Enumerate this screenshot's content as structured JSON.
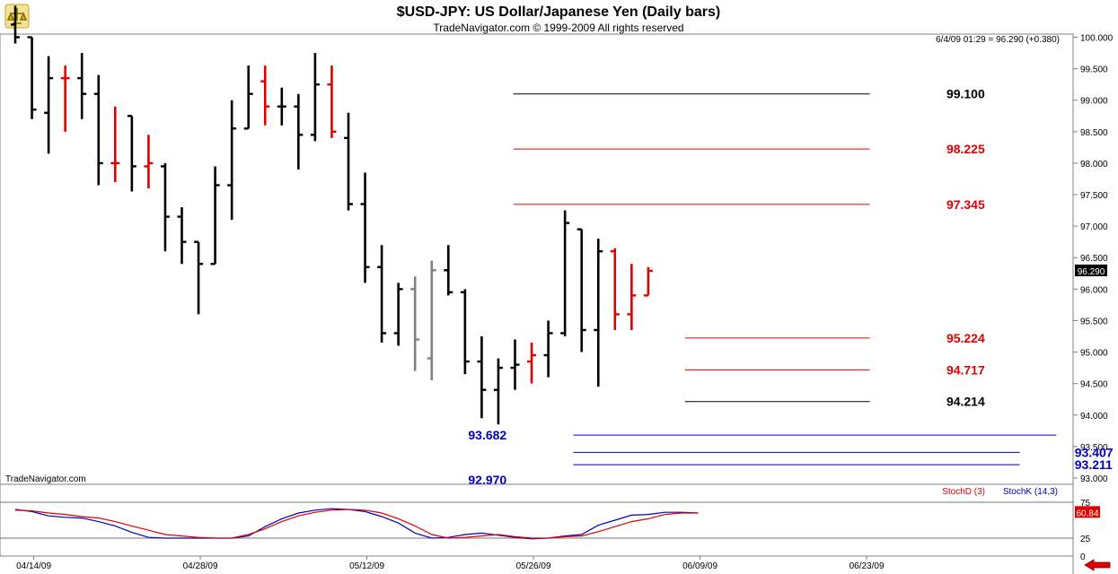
{
  "chart_data": {
    "type": "ohlc",
    "title": "$USD-JPY:  US Dollar/Japanese Yen  (Daily bars)",
    "subtitle": "TradeNavigator.com © 1999-2009 All rights reserved",
    "watermark": "TradeNavigator.com",
    "quote": "6/4/09 01:29 = 96.290 (+0.380)",
    "last_price": "96.290",
    "last_price_value": 96.29,
    "price_axis": {
      "min": 92.9,
      "max": 100.05,
      "ticks": [
        "100.000",
        "99.500",
        "99.000",
        "98.500",
        "98.000",
        "97.500",
        "97.000",
        "96.500",
        "96.000",
        "95.500",
        "95.000",
        "94.500",
        "94.000",
        "93.500",
        "93.000"
      ]
    },
    "date_ticks": [
      {
        "label": "04/14/09",
        "index": 1
      },
      {
        "label": "04/28/09",
        "index": 11
      },
      {
        "label": "05/12/09",
        "index": 21
      },
      {
        "label": "05/26/09",
        "index": 31
      },
      {
        "label": "06/09/09",
        "index": 41
      },
      {
        "label": "06/23/09",
        "index": 51
      }
    ],
    "colors": {
      "up": "#000000",
      "down": "#e00000",
      "neutral": "#808080",
      "fib_black": "#000000",
      "fib_red": "#e00000",
      "fib_blue": "#0000c0",
      "stoch_d": "#e00000",
      "stoch_k": "#0000c0"
    },
    "bars": [
      {
        "date": "04/10/09",
        "open": 100.2,
        "high": 100.5,
        "low": 99.9,
        "close": 100.0,
        "color": "black"
      },
      {
        "date": "04/13/09",
        "open": 100.0,
        "high": 100.0,
        "low": 98.7,
        "close": 98.85,
        "color": "black"
      },
      {
        "date": "04/14/09",
        "open": 98.8,
        "high": 99.7,
        "low": 98.15,
        "close": 99.35,
        "color": "black"
      },
      {
        "date": "04/15/09",
        "open": 99.35,
        "high": 99.55,
        "low": 98.5,
        "close": 99.35,
        "color": "red"
      },
      {
        "date": "04/16/09",
        "open": 99.35,
        "high": 99.75,
        "low": 98.7,
        "close": 99.1,
        "color": "black"
      },
      {
        "date": "04/17/09",
        "open": 99.1,
        "high": 99.4,
        "low": 97.65,
        "close": 98.0,
        "color": "black"
      },
      {
        "date": "04/20/09",
        "open": 98.0,
        "high": 98.9,
        "low": 97.7,
        "close": 98.0,
        "color": "red"
      },
      {
        "date": "04/21/09",
        "open": 98.75,
        "high": 98.75,
        "low": 97.55,
        "close": 97.95,
        "color": "black"
      },
      {
        "date": "04/22/09",
        "open": 97.95,
        "high": 98.45,
        "low": 97.6,
        "close": 98.0,
        "color": "red"
      },
      {
        "date": "04/23/09",
        "open": 97.95,
        "high": 98.0,
        "low": 96.6,
        "close": 97.15,
        "color": "black"
      },
      {
        "date": "04/24/09",
        "open": 97.15,
        "high": 97.3,
        "low": 96.4,
        "close": 96.75,
        "color": "black"
      },
      {
        "date": "04/27/09",
        "open": 96.75,
        "high": 96.75,
        "low": 95.6,
        "close": 96.4,
        "color": "black"
      },
      {
        "date": "04/28/09",
        "open": 96.4,
        "high": 97.95,
        "low": 96.4,
        "close": 97.65,
        "color": "black"
      },
      {
        "date": "04/29/09",
        "open": 97.65,
        "high": 99.0,
        "low": 97.1,
        "close": 98.55,
        "color": "black"
      },
      {
        "date": "04/30/09",
        "open": 98.55,
        "high": 99.55,
        "low": 98.55,
        "close": 99.1,
        "color": "black"
      },
      {
        "date": "05/01/09",
        "open": 99.3,
        "high": 99.55,
        "low": 98.6,
        "close": 98.9,
        "color": "red"
      },
      {
        "date": "05/04/09",
        "open": 98.9,
        "high": 99.2,
        "low": 98.6,
        "close": 98.9,
        "color": "black"
      },
      {
        "date": "05/05/09",
        "open": 98.9,
        "high": 99.1,
        "low": 97.9,
        "close": 98.45,
        "color": "black"
      },
      {
        "date": "05/06/09",
        "open": 98.45,
        "high": 99.75,
        "low": 98.35,
        "close": 99.25,
        "color": "black"
      },
      {
        "date": "05/07/09",
        "open": 99.25,
        "high": 99.55,
        "low": 98.4,
        "close": 98.5,
        "color": "red"
      },
      {
        "date": "05/08/09",
        "open": 98.4,
        "high": 98.8,
        "low": 97.25,
        "close": 97.35,
        "color": "black"
      },
      {
        "date": "05/11/09",
        "open": 97.35,
        "high": 97.85,
        "low": 96.1,
        "close": 96.35,
        "color": "black"
      },
      {
        "date": "05/12/09",
        "open": 96.35,
        "high": 96.7,
        "low": 95.15,
        "close": 95.3,
        "color": "black"
      },
      {
        "date": "05/13/09",
        "open": 95.3,
        "high": 96.1,
        "low": 95.1,
        "close": 96.0,
        "color": "black"
      },
      {
        "date": "05/14/09",
        "open": 96.0,
        "high": 96.2,
        "low": 94.7,
        "close": 95.2,
        "color": "gray"
      },
      {
        "date": "05/15/09",
        "open": 94.9,
        "high": 96.45,
        "low": 94.55,
        "close": 96.3,
        "color": "gray"
      },
      {
        "date": "05/18/09",
        "open": 96.3,
        "high": 96.7,
        "low": 95.9,
        "close": 95.95,
        "color": "black"
      },
      {
        "date": "05/19/09",
        "open": 95.95,
        "high": 96.0,
        "low": 94.65,
        "close": 94.85,
        "color": "black"
      },
      {
        "date": "05/20/09",
        "open": 94.85,
        "high": 95.25,
        "low": 93.95,
        "close": 94.4,
        "color": "black"
      },
      {
        "date": "05/21/09",
        "open": 94.4,
        "high": 94.9,
        "low": 93.85,
        "close": 94.75,
        "color": "black"
      },
      {
        "date": "05/22/09",
        "open": 94.75,
        "high": 95.2,
        "low": 94.4,
        "close": 94.8,
        "color": "black"
      },
      {
        "date": "05/25/09",
        "open": 94.85,
        "high": 95.15,
        "low": 94.5,
        "close": 94.95,
        "color": "red"
      },
      {
        "date": "05/26/09",
        "open": 94.95,
        "high": 95.5,
        "low": 94.6,
        "close": 95.3,
        "color": "black"
      },
      {
        "date": "05/27/09",
        "open": 95.3,
        "high": 97.25,
        "low": 95.25,
        "close": 97.05,
        "color": "black"
      },
      {
        "date": "05/28/09",
        "open": 96.95,
        "high": 96.95,
        "low": 95.0,
        "close": 95.35,
        "color": "black"
      },
      {
        "date": "05/29/09",
        "open": 95.35,
        "high": 96.8,
        "low": 94.45,
        "close": 96.6,
        "color": "black"
      },
      {
        "date": "06/01/09",
        "open": 96.6,
        "high": 96.65,
        "low": 95.35,
        "close": 95.6,
        "color": "red"
      },
      {
        "date": "06/02/09",
        "open": 95.6,
        "high": 96.4,
        "low": 95.35,
        "close": 95.9,
        "color": "red"
      },
      {
        "date": "06/03/09",
        "open": 95.9,
        "high": 96.35,
        "low": 95.9,
        "close": 96.29,
        "color": "red"
      }
    ],
    "levels": [
      {
        "label": "99.100",
        "value": 99.1,
        "x1": 29.9,
        "x2": 51.3,
        "label_x": 55.9,
        "color": "black"
      },
      {
        "label": "98.225",
        "value": 98.225,
        "x1": 29.9,
        "x2": 51.3,
        "label_x": 55.9,
        "color": "red"
      },
      {
        "label": "97.345",
        "value": 97.345,
        "x1": 29.9,
        "x2": 51.3,
        "label_x": 55.9,
        "color": "red"
      },
      {
        "label": "95.224",
        "value": 95.224,
        "x1": 40.2,
        "x2": 51.3,
        "label_x": 55.9,
        "color": "red"
      },
      {
        "label": "94.717",
        "value": 94.717,
        "x1": 40.2,
        "x2": 51.3,
        "label_x": 55.9,
        "color": "red"
      },
      {
        "label": "94.214",
        "value": 94.214,
        "x1": 40.2,
        "x2": 51.3,
        "label_x": 55.9,
        "color": "black"
      },
      {
        "label": "93.682",
        "value": 93.682,
        "x1": 33.5,
        "x2": 62.5,
        "label_x": 29.5,
        "color": "blue",
        "label_side": "left"
      },
      {
        "label": "93.407",
        "value": 93.407,
        "x1": 33.5,
        "x2": 60.3,
        "label_x": 63.6,
        "color": "blue"
      },
      {
        "label": "93.211",
        "value": 93.211,
        "x1": 33.5,
        "x2": 60.3,
        "label_x": 63.6,
        "color": "blue"
      },
      {
        "label": "92.970",
        "value": 92.97,
        "x1": 33.5,
        "x2": 33.5,
        "label_x": 29.5,
        "color": "blue",
        "label_side": "left"
      }
    ],
    "stochastic": {
      "legend_d": "StochD (3)",
      "legend_k": "StochK (14,3)",
      "axis_ticks": [
        "75",
        "25",
        "0"
      ],
      "y_min": 0,
      "y_max": 100,
      "last_value": "60.84",
      "last_value_num": 60.84,
      "d": [
        64,
        63,
        60,
        58,
        55,
        53,
        48,
        42,
        36,
        30,
        28,
        26,
        25,
        25,
        30,
        38,
        48,
        56,
        61,
        64,
        65,
        64,
        60,
        52,
        42,
        30,
        25,
        26,
        28,
        30,
        27,
        25,
        25,
        27,
        28,
        34,
        41,
        48,
        52,
        58,
        60,
        60
      ],
      "k": [
        65,
        62,
        56,
        54,
        53,
        48,
        42,
        33,
        26,
        25,
        25,
        25,
        25,
        25,
        28,
        41,
        52,
        60,
        64,
        66,
        65,
        62,
        55,
        46,
        32,
        25,
        26,
        30,
        32,
        29,
        26,
        24,
        25,
        28,
        30,
        43,
        50,
        57,
        58,
        61,
        61,
        60
      ]
    }
  }
}
